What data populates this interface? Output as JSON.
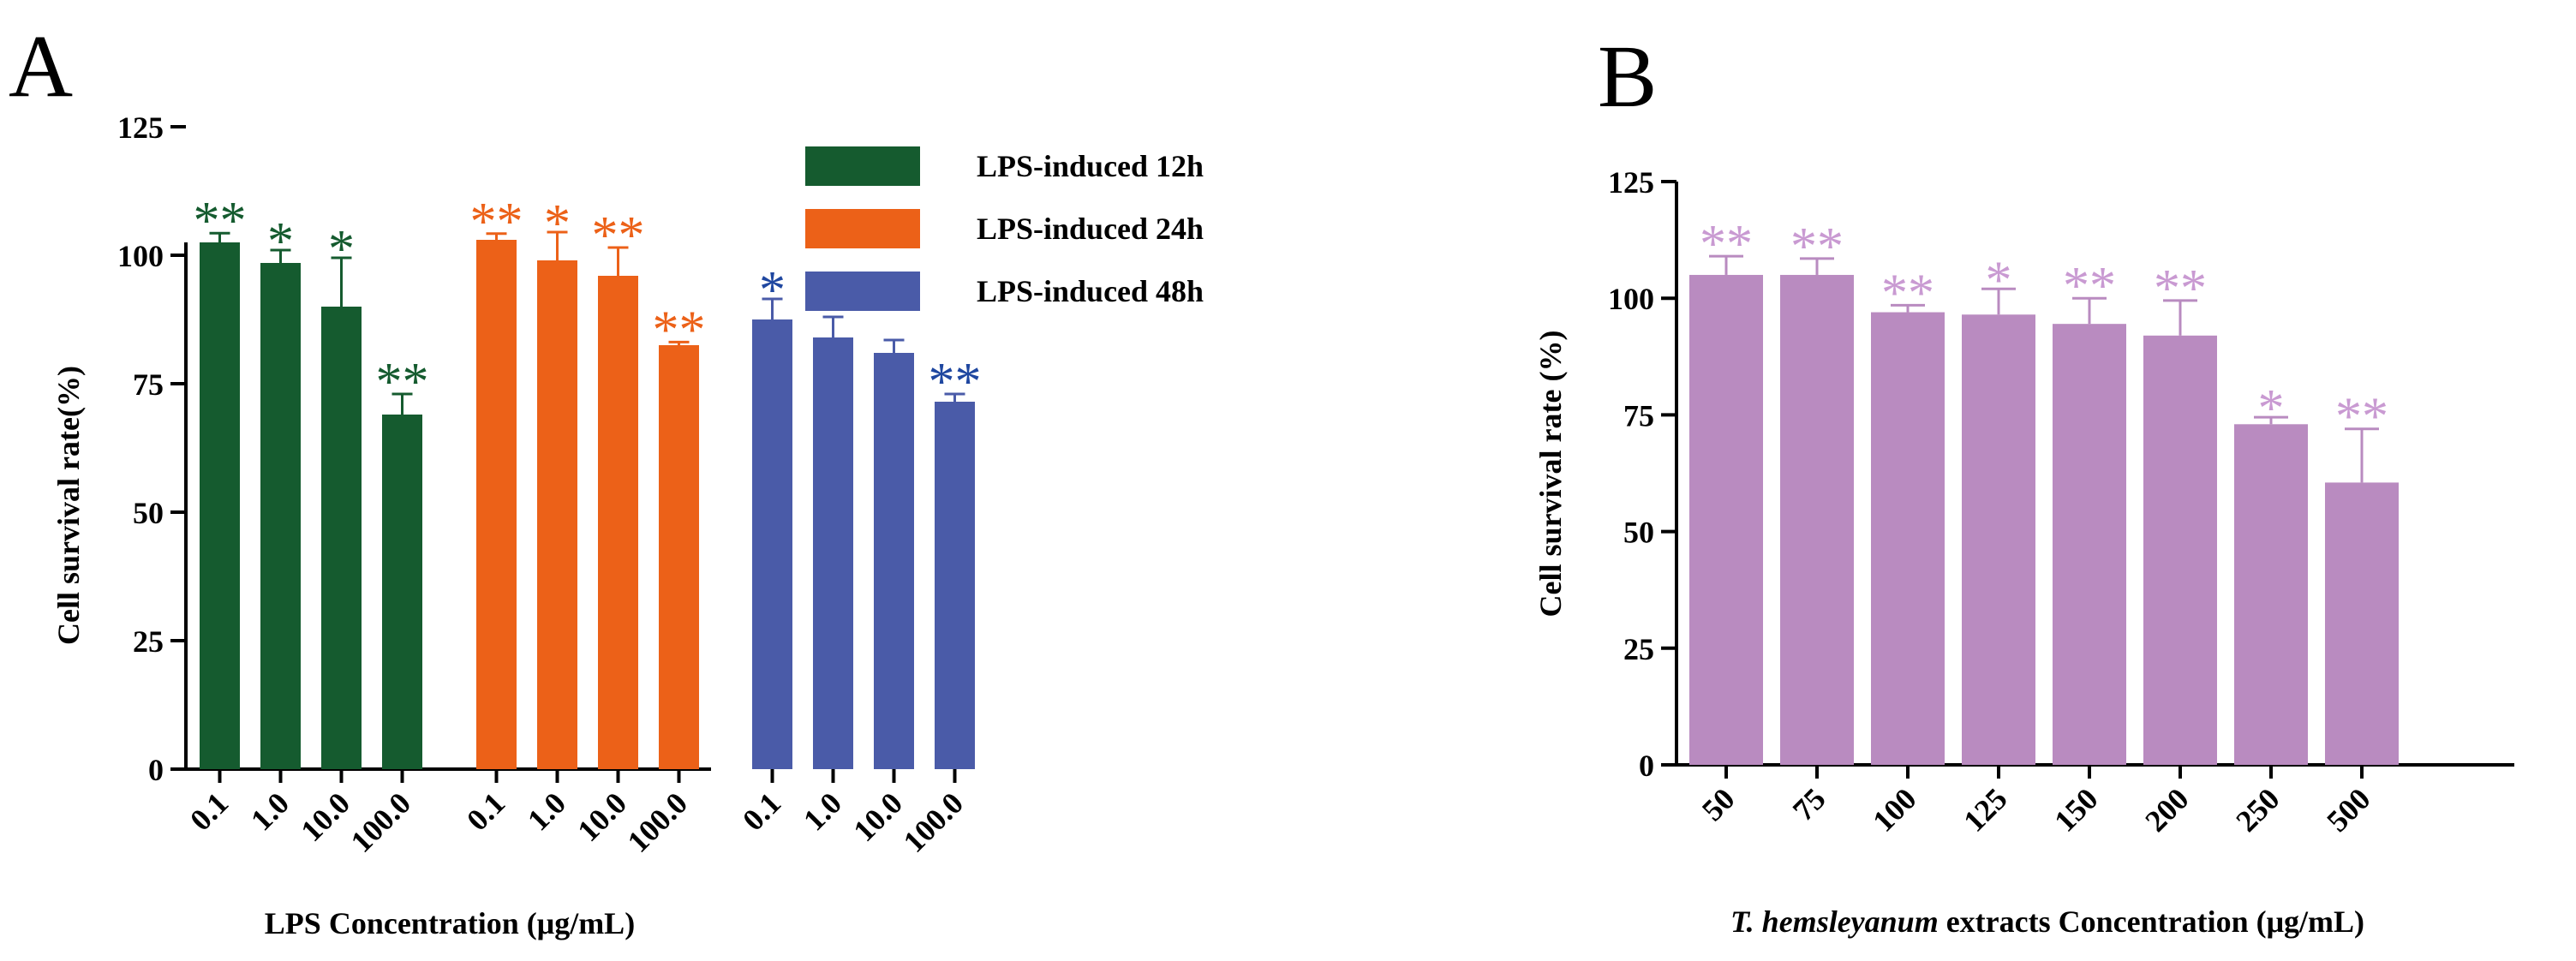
{
  "chart_data": [
    {
      "panel": "A",
      "type": "bar",
      "ylabel": "Cell survival rate(%)",
      "xlabel": "LPS Concentration (μg/mL)",
      "ylim": [
        0,
        125
      ],
      "yticks": [
        "0",
        "25",
        "50",
        "75",
        "100",
        "125"
      ],
      "grid": false,
      "legend_position": "top-right",
      "series": [
        {
          "name": "LPS-induced 12h",
          "color": "#155b2f",
          "categories": [
            "0.1",
            "1.0",
            "10.0",
            "100.0"
          ],
          "values": [
            102.5,
            98.5,
            90,
            69
          ],
          "errors": [
            1.8,
            2.5,
            9.5,
            4
          ],
          "significance": [
            "**",
            "*",
            "*",
            "**"
          ]
        },
        {
          "name": "LPS-induced 24h",
          "color": "#ec6118",
          "categories": [
            "0.1",
            "1.0",
            "10.0",
            "100.0"
          ],
          "values": [
            103,
            99,
            96,
            82.5
          ],
          "errors": [
            1.2,
            5.5,
            5.5,
            0.6
          ],
          "significance": [
            "**",
            "*",
            "**",
            "**"
          ]
        },
        {
          "name": "LPS-induced 48h",
          "color": "#4a5ba8",
          "sig_color": "#1f47a0",
          "categories": [
            "0.1",
            "1.0",
            "10.0",
            "100.0"
          ],
          "values": [
            87.5,
            84,
            81,
            71.5
          ],
          "errors": [
            4,
            4,
            2.5,
            1.5
          ],
          "significance": [
            "*",
            "**",
            "",
            "**"
          ]
        }
      ]
    },
    {
      "panel": "B",
      "type": "bar",
      "ylabel": "Cell survival rate (%)",
      "xlabel_italic": "T. hemsleyanum",
      "xlabel_rest": " extracts Concentration (μg/mL)",
      "ylim": [
        0,
        125
      ],
      "yticks": [
        "0",
        "25",
        "50",
        "75",
        "100",
        "125"
      ],
      "grid": false,
      "color": "#b98bc0",
      "sig_color": "#c99ad2",
      "categories": [
        "50",
        "75",
        "100",
        "125",
        "150",
        "200",
        "250",
        "500"
      ],
      "values": [
        105,
        105,
        97,
        96.5,
        94.5,
        92,
        73,
        60.5
      ],
      "errors": [
        4,
        3.5,
        1.5,
        5.5,
        5.5,
        7.5,
        1.5,
        11.5
      ],
      "significance": [
        "**",
        "**",
        "**",
        "*",
        "**",
        "**",
        "*",
        "**"
      ]
    }
  ]
}
